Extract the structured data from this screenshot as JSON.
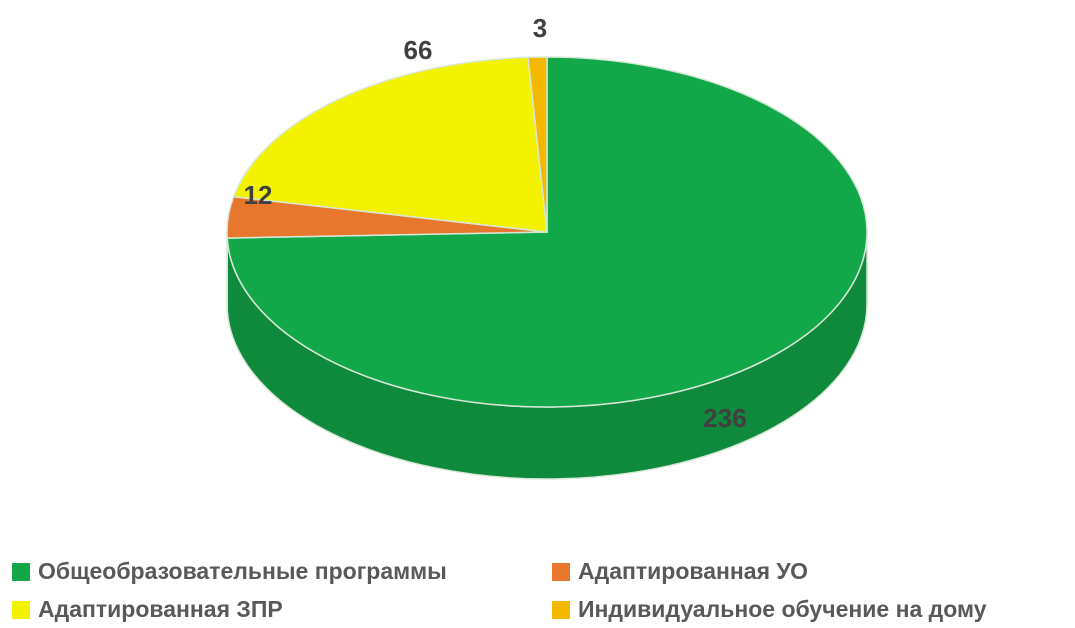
{
  "chart_data": {
    "type": "pie3d",
    "categories": [
      "Общеобразовательные программы",
      "Адаптированная УО",
      "Адаптированная ЗПР",
      "Индивидуальное обучение на дому"
    ],
    "values": [
      236,
      12,
      66,
      3
    ],
    "colors": [
      "#12a84a",
      "#e8772e",
      "#f3f300",
      "#f5b800"
    ],
    "legend": "bottom"
  }
}
